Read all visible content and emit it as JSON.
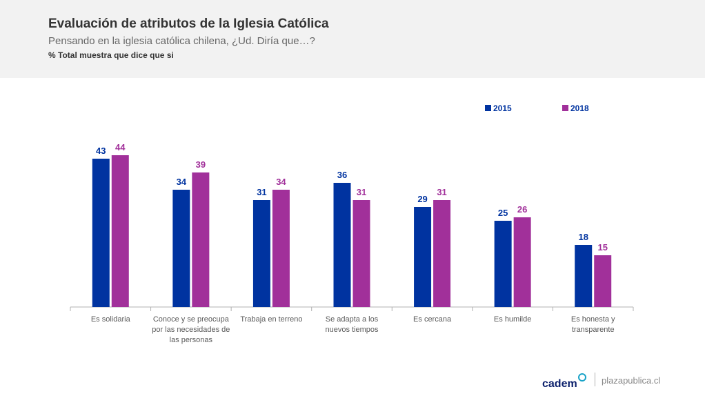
{
  "header": {
    "title": "Evaluación de atributos de la Iglesia Católica",
    "subtitle": "Pensando en la iglesia católica chilena, ¿Ud. Diría que…?",
    "note": "% Total muestra que dice que si"
  },
  "footer": {
    "logo": "cadem",
    "site": "plazapublica.cl"
  },
  "colors": {
    "series_2015": "#0033a0",
    "series_2018": "#a1309a",
    "axis": "#b0b0b0",
    "category_label": "#595959"
  },
  "chart_data": {
    "type": "bar",
    "title": "Evaluación de atributos de la Iglesia Católica",
    "xlabel": "",
    "ylabel": "",
    "ylim": [
      0,
      50
    ],
    "grid": false,
    "legend_position": "top-right",
    "categories": [
      [
        "Es solidaria"
      ],
      [
        "Conoce y se preocupa",
        "por las necesidades de",
        "las personas"
      ],
      [
        "Trabaja en terreno"
      ],
      [
        "Se adapta a los",
        "nuevos tiempos"
      ],
      [
        "Es cercana"
      ],
      [
        "Es humilde"
      ],
      [
        "Es honesta y",
        "transparente"
      ]
    ],
    "series": [
      {
        "name": "2015",
        "values": [
          43,
          34,
          31,
          36,
          29,
          25,
          18
        ]
      },
      {
        "name": "2018",
        "values": [
          44,
          39,
          34,
          31,
          31,
          26,
          15
        ]
      }
    ]
  }
}
